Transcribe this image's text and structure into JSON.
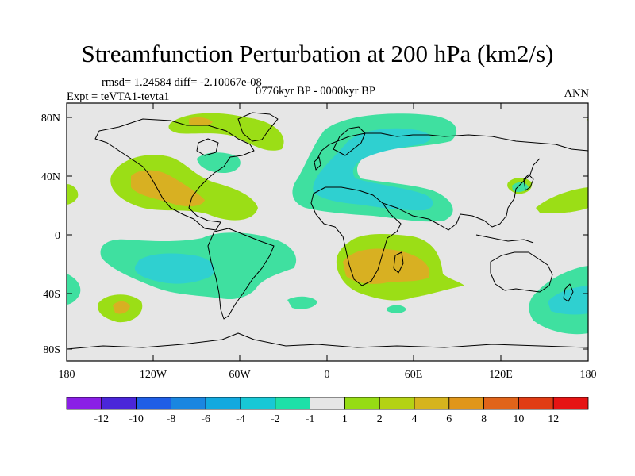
{
  "title": "Streamfunction Perturbation at 200 hPa (km2/s)",
  "stats_line": "rmsd= 1.24584 diff= -2.10067e-08",
  "experiment": "Expt = teVTA1-tevta1",
  "period": "0776kyr BP - 0000kyr BP",
  "season": "ANN",
  "map": {
    "background_color": "#e6e6e6",
    "lat_ticks": [
      "80N",
      "40N",
      "0",
      "40S",
      "80S"
    ],
    "lon_ticks": [
      "180",
      "120W",
      "60W",
      "0",
      "60E",
      "120E",
      "180"
    ]
  },
  "colorbar": {
    "labels": [
      "-12",
      "-10",
      "-8",
      "-6",
      "-4",
      "-2",
      "-1",
      "1",
      "2",
      "4",
      "6",
      "8",
      "10",
      "12"
    ],
    "colors": [
      "#8a1fe6",
      "#4a26d9",
      "#1f5ee6",
      "#1a86e0",
      "#12a9df",
      "#18c8d6",
      "#1ee0a8",
      "#e6e6e6",
      "#96dc14",
      "#b4d214",
      "#d6b41e",
      "#e0961a",
      "#e0641a",
      "#e03c14",
      "#e61414"
    ]
  },
  "legend_colors": {
    "neg1": "#3fe0a0",
    "neg2": "#2fd0d0",
    "pos1": "#9bde16",
    "pos2": "#d8b022"
  }
}
